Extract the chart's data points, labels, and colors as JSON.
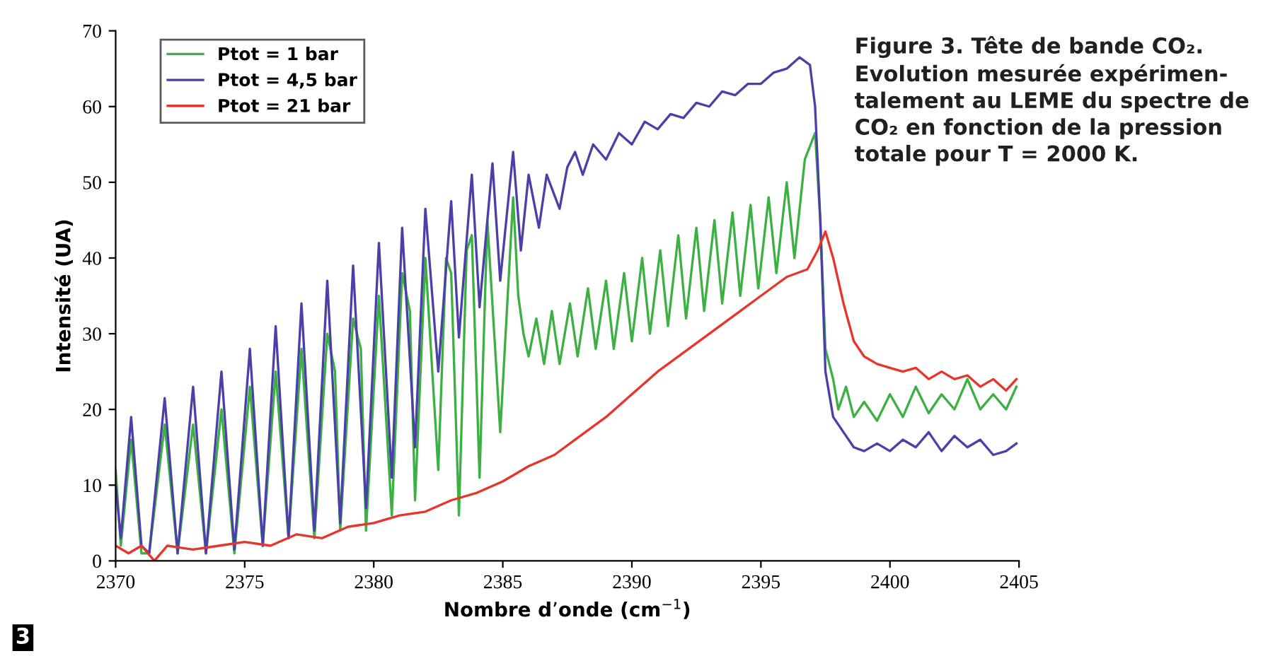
{
  "chart_data": {
    "type": "line",
    "xlabel": "Nombre d’onde (cm$^{−1}$)",
    "ylabel": "Intensité (UA)",
    "xlim": [
      2370,
      2405
    ],
    "xticks": [
      2370,
      2375,
      2380,
      2385,
      2390,
      2395,
      2400,
      2405
    ],
    "ylim": [
      0,
      70
    ],
    "yticks": [
      0,
      10,
      20,
      30,
      40,
      50,
      60,
      70
    ],
    "grid": false,
    "legend": "top left",
    "marker": "none",
    "line_style": "solid",
    "annotations": [
      "Figure 3. Tête de bande CO₂.\nEvolution mesurée expérimen-\ntalement au LEME du spectre de\nCO₂ en fonction de la pression\ntotale pour T = 2000 K.",
      "3"
    ],
    "series": [
      {
        "name": "Ptot = 1 bar",
        "color": "#3cb043",
        "x": [
          2370.0,
          2370.2,
          2370.6,
          2371.0,
          2371.3,
          2371.9,
          2372.4,
          2373.0,
          2373.5,
          2374.1,
          2374.6,
          2375.2,
          2375.7,
          2376.2,
          2376.7,
          2377.2,
          2377.7,
          2378.2,
          2378.5,
          2378.7,
          2379.2,
          2379.5,
          2379.7,
          2380.2,
          2380.7,
          2381.1,
          2381.4,
          2381.6,
          2382.0,
          2382.5,
          2382.8,
          2383.0,
          2383.3,
          2383.6,
          2383.8,
          2384.1,
          2384.4,
          2384.9,
          2385.4,
          2385.6,
          2385.8,
          2386.0,
          2386.3,
          2386.6,
          2386.9,
          2387.2,
          2387.6,
          2387.9,
          2388.3,
          2388.6,
          2389.0,
          2389.3,
          2389.7,
          2390.0,
          2390.4,
          2390.7,
          2391.1,
          2391.4,
          2391.8,
          2392.1,
          2392.5,
          2392.8,
          2393.2,
          2393.5,
          2393.9,
          2394.2,
          2394.6,
          2394.9,
          2395.3,
          2395.6,
          2396.0,
          2396.3,
          2396.7,
          2397.1,
          2397.3,
          2397.5,
          2397.8,
          2398.0,
          2398.3,
          2398.6,
          2399.0,
          2399.5,
          2400.0,
          2400.5,
          2401.0,
          2401.5,
          2402.0,
          2402.5,
          2403.0,
          2403.5,
          2404.0,
          2404.5,
          2404.9
        ],
        "values": [
          12,
          2,
          16,
          1,
          1,
          18,
          1,
          18,
          1,
          20,
          1,
          23,
          2,
          25,
          3,
          28,
          3,
          30,
          25,
          4,
          32,
          28,
          4,
          35,
          6,
          38,
          33,
          8,
          40,
          12,
          40,
          38,
          6,
          41,
          43,
          11,
          45,
          17,
          48,
          35,
          30,
          27,
          32,
          26,
          33,
          26,
          34,
          27,
          36,
          28,
          37,
          28,
          38,
          29,
          40,
          30,
          41,
          31,
          43,
          32,
          44,
          33,
          45,
          34,
          46,
          35,
          47,
          36,
          48,
          38,
          50,
          40,
          53,
          56.5,
          45,
          28,
          24,
          20,
          23,
          19,
          21,
          18.5,
          22,
          19,
          23,
          19.5,
          22,
          20,
          24,
          20,
          22,
          20,
          23
        ]
      },
      {
        "name": "Ptot = 4,5 bar",
        "color": "#4b3fa8",
        "x": [
          2370.0,
          2370.2,
          2370.6,
          2371.0,
          2371.3,
          2371.9,
          2372.4,
          2373.0,
          2373.5,
          2374.1,
          2374.6,
          2375.2,
          2375.7,
          2376.2,
          2376.7,
          2377.2,
          2377.7,
          2378.2,
          2378.7,
          2379.2,
          2379.7,
          2380.2,
          2380.7,
          2381.1,
          2381.6,
          2382.0,
          2382.5,
          2383.0,
          2383.3,
          2383.8,
          2384.1,
          2384.6,
          2384.9,
          2385.4,
          2385.7,
          2386.0,
          2386.4,
          2386.7,
          2387.2,
          2387.5,
          2387.8,
          2388.1,
          2388.5,
          2389.0,
          2389.5,
          2390.0,
          2390.5,
          2391.0,
          2391.5,
          2392.0,
          2392.5,
          2393.0,
          2393.5,
          2394.0,
          2394.5,
          2395.0,
          2395.5,
          2396.0,
          2396.5,
          2396.9,
          2397.1,
          2397.3,
          2397.5,
          2397.8,
          2398.2,
          2398.6,
          2399.0,
          2399.5,
          2400.0,
          2400.5,
          2401.0,
          2401.5,
          2402.0,
          2402.5,
          2403.0,
          2403.5,
          2404.0,
          2404.5,
          2404.9
        ],
        "values": [
          10,
          3,
          19,
          2,
          1,
          21.5,
          1,
          23,
          1,
          25,
          1.5,
          28,
          2,
          31,
          3,
          34,
          4,
          37,
          5,
          39,
          7,
          42,
          11,
          44,
          15,
          46.5,
          25,
          47.5,
          29.5,
          51,
          33.5,
          52.5,
          37,
          54,
          41,
          51,
          44,
          51,
          46.5,
          52,
          54,
          51,
          55,
          53,
          56.5,
          55,
          58,
          57,
          59,
          58.5,
          60.5,
          60,
          62,
          61.5,
          63,
          63,
          64.5,
          65,
          66.5,
          65.5,
          60,
          45,
          25,
          19,
          17,
          15,
          14.5,
          15.5,
          14.5,
          16,
          15,
          17,
          14.5,
          16.5,
          15,
          16,
          14,
          14.5,
          15.5
        ]
      },
      {
        "name": "Ptot = 21 bar",
        "color": "#e8352b",
        "x": [
          2370,
          2370.5,
          2371,
          2371.5,
          2372,
          2373,
          2374,
          2375,
          2376,
          2377,
          2378,
          2379,
          2380,
          2381,
          2382,
          2383,
          2384,
          2385,
          2386,
          2387,
          2388,
          2389,
          2390,
          2391,
          2392,
          2393,
          2394,
          2395,
          2396,
          2396.8,
          2397.2,
          2397.5,
          2397.8,
          2398.2,
          2398.6,
          2399,
          2399.5,
          2400,
          2400.5,
          2401,
          2401.5,
          2402,
          2402.5,
          2403,
          2403.5,
          2404,
          2404.5,
          2404.9
        ],
        "values": [
          2,
          1,
          2,
          0,
          2,
          1.5,
          2,
          2.5,
          2,
          3.5,
          3,
          4.5,
          5,
          6,
          6.5,
          8,
          9,
          10.5,
          12.5,
          14,
          16.5,
          19,
          22,
          25,
          27.5,
          30,
          32.5,
          35,
          37.5,
          38.5,
          41,
          43.5,
          40,
          34,
          29,
          27,
          26,
          25.5,
          25,
          25.5,
          24,
          25,
          24,
          24.5,
          23,
          24,
          22.5,
          24
        ]
      }
    ]
  }
}
